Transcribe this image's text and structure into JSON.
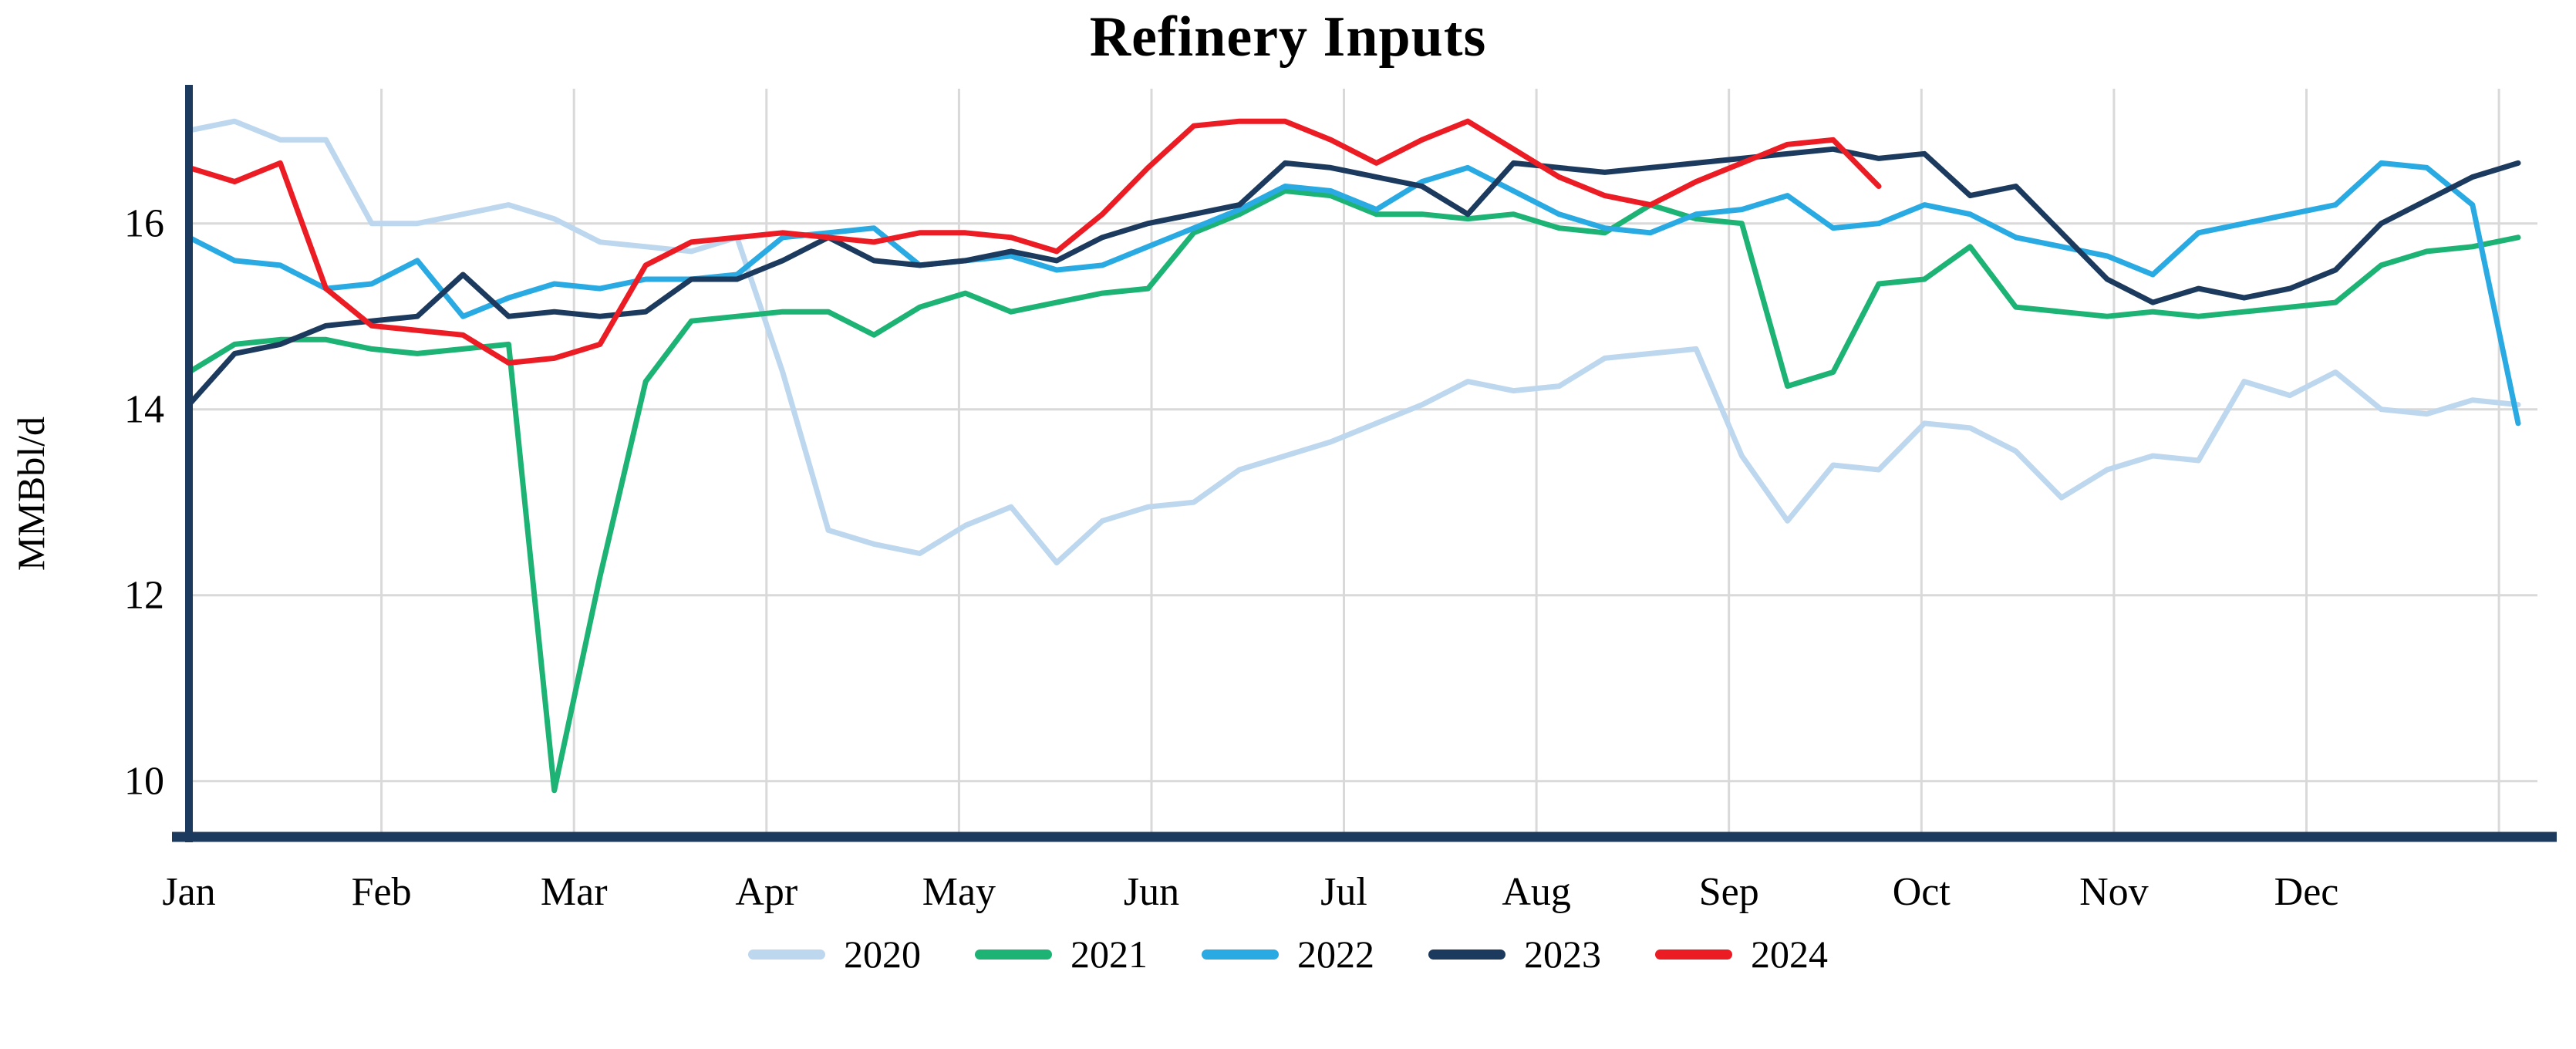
{
  "page": {
    "background": "#ffffff"
  },
  "chart_data": {
    "type": "line",
    "title": "Refinery Inputs",
    "ylabel": "MMBbl/d",
    "xlabel": "",
    "x_tick_labels": [
      "Jan",
      "Feb",
      "Mar",
      "Apr",
      "May",
      "Jun",
      "Jul",
      "Aug",
      "Sep",
      "Oct",
      "Nov",
      "Dec"
    ],
    "y_ticks": [
      10,
      12,
      14,
      16
    ],
    "ylim": [
      9.4,
      17.45
    ],
    "xlim_months": [
      0,
      12.2
    ],
    "x_unit": "weekly",
    "x_data_span_months": 12.1,
    "grid": true,
    "grid_color": "#d9d9d9",
    "axis_color": "#1c3a5e",
    "legend_position": "bottom-center",
    "series": [
      {
        "name": "2020",
        "color": "#bdd7ee",
        "values": [
          17.0,
          17.1,
          16.9,
          16.9,
          16.0,
          16.0,
          16.1,
          16.2,
          16.05,
          15.8,
          15.75,
          15.7,
          15.85,
          14.4,
          12.7,
          12.55,
          12.45,
          12.75,
          12.95,
          12.35,
          12.8,
          12.95,
          13.0,
          13.35,
          13.5,
          13.65,
          13.85,
          14.05,
          14.3,
          14.2,
          14.25,
          14.55,
          14.6,
          14.65,
          13.5,
          12.8,
          13.4,
          13.35,
          13.85,
          13.8,
          13.55,
          13.05,
          13.35,
          13.5,
          13.45,
          14.3,
          14.15,
          14.4,
          14.0,
          13.95,
          14.1,
          14.05
        ]
      },
      {
        "name": "2021",
        "color": "#1cb374",
        "values": [
          14.4,
          14.7,
          14.75,
          14.75,
          14.65,
          14.6,
          14.65,
          14.7,
          9.9,
          12.2,
          14.3,
          14.95,
          15.0,
          15.05,
          15.05,
          14.8,
          15.1,
          15.25,
          15.05,
          15.15,
          15.25,
          15.3,
          15.9,
          16.1,
          16.35,
          16.3,
          16.1,
          16.1,
          16.05,
          16.1,
          15.95,
          15.9,
          16.2,
          16.05,
          16.0,
          14.25,
          14.4,
          15.35,
          15.4,
          15.75,
          15.1,
          15.05,
          15.0,
          15.05,
          15.0,
          15.05,
          15.1,
          15.15,
          15.55,
          15.7,
          15.75,
          15.85
        ]
      },
      {
        "name": "2022",
        "color": "#2aaae2",
        "values": [
          15.85,
          15.6,
          15.55,
          15.3,
          15.35,
          15.6,
          15.0,
          15.2,
          15.35,
          15.3,
          15.4,
          15.4,
          15.45,
          15.85,
          15.9,
          15.95,
          15.55,
          15.6,
          15.65,
          15.5,
          15.55,
          15.75,
          15.95,
          16.15,
          16.4,
          16.35,
          16.15,
          16.45,
          16.6,
          16.35,
          16.1,
          15.95,
          15.9,
          16.1,
          16.15,
          16.3,
          15.95,
          16.0,
          16.2,
          16.1,
          15.85,
          15.75,
          15.65,
          15.45,
          15.9,
          16.0,
          16.1,
          16.2,
          16.65,
          16.6,
          16.2,
          13.85
        ]
      },
      {
        "name": "2023",
        "color": "#1c3a5e",
        "values": [
          14.05,
          14.6,
          14.7,
          14.9,
          14.95,
          15.0,
          15.45,
          15.0,
          15.05,
          15.0,
          15.05,
          15.4,
          15.4,
          15.6,
          15.85,
          15.6,
          15.55,
          15.6,
          15.7,
          15.6,
          15.85,
          16.0,
          16.1,
          16.2,
          16.65,
          16.6,
          16.5,
          16.4,
          16.1,
          16.65,
          16.6,
          16.55,
          16.6,
          16.65,
          16.7,
          16.75,
          16.8,
          16.7,
          16.75,
          16.3,
          16.4,
          15.9,
          15.4,
          15.15,
          15.3,
          15.2,
          15.3,
          15.5,
          16.0,
          16.25,
          16.5,
          16.65
        ]
      },
      {
        "name": "2024",
        "color": "#ec1c24",
        "values": [
          16.6,
          16.45,
          16.65,
          15.3,
          14.9,
          14.85,
          14.8,
          14.5,
          14.55,
          14.7,
          15.55,
          15.8,
          15.85,
          15.9,
          15.85,
          15.8,
          15.9,
          15.9,
          15.85,
          15.7,
          16.1,
          16.6,
          17.05,
          17.1,
          17.1,
          16.9,
          16.65,
          16.9,
          17.1,
          16.8,
          16.5,
          16.3,
          16.2,
          16.45,
          16.65,
          16.85,
          16.9,
          16.4
        ]
      }
    ],
    "legend_entries": [
      "2020",
      "2021",
      "2022",
      "2023",
      "2024"
    ]
  }
}
